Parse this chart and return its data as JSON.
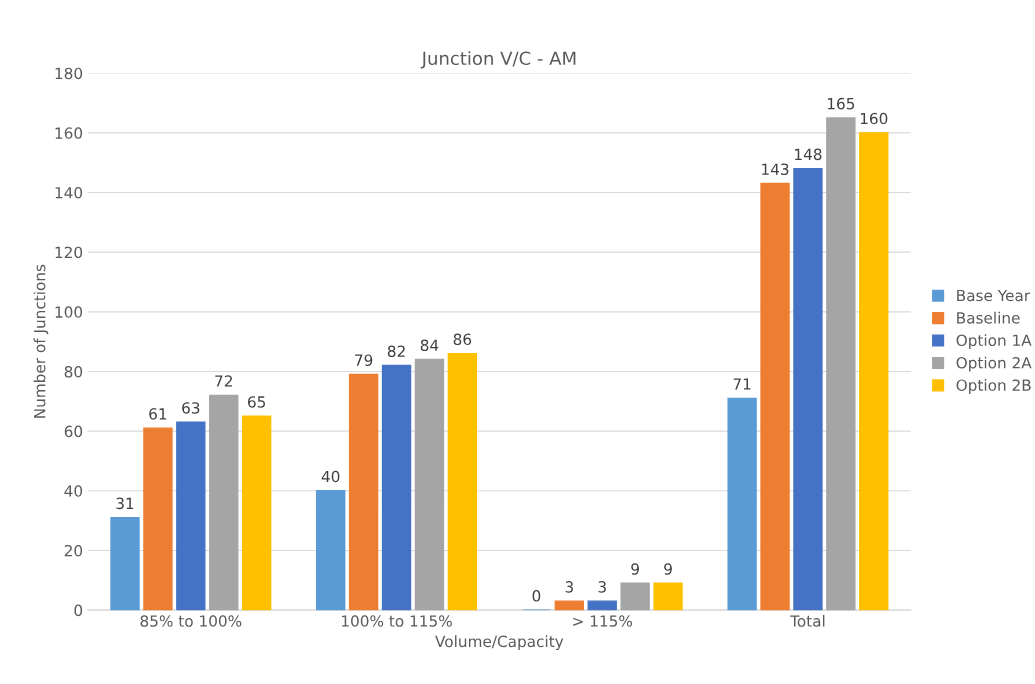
{
  "chart_data": {
    "type": "bar",
    "title": "Junction V/C - AM",
    "xlabel": "Volume/Capacity",
    "ylabel": "Number of Junctions",
    "categories": [
      "85% to 100%",
      "100% to 115%",
      "> 115%",
      "Total"
    ],
    "series": [
      {
        "name": "Base Year",
        "color": "#5b9bd5",
        "values": [
          31,
          40,
          0,
          71
        ]
      },
      {
        "name": "Baseline",
        "color": "#ed7d31",
        "values": [
          61,
          79,
          3,
          143
        ]
      },
      {
        "name": "Option 1A",
        "color": "#4472c4",
        "values": [
          63,
          82,
          3,
          148
        ]
      },
      {
        "name": "Option 2A",
        "color": "#a5a5a5",
        "values": [
          72,
          84,
          9,
          165
        ]
      },
      {
        "name": "Option 2B",
        "color": "#ffc000",
        "values": [
          65,
          86,
          9,
          160
        ]
      }
    ],
    "ylim": [
      0,
      180
    ],
    "yticks": [
      0,
      20,
      40,
      60,
      80,
      100,
      120,
      140,
      160,
      180
    ],
    "grid": "y",
    "legend": "right",
    "data_labels": true
  }
}
